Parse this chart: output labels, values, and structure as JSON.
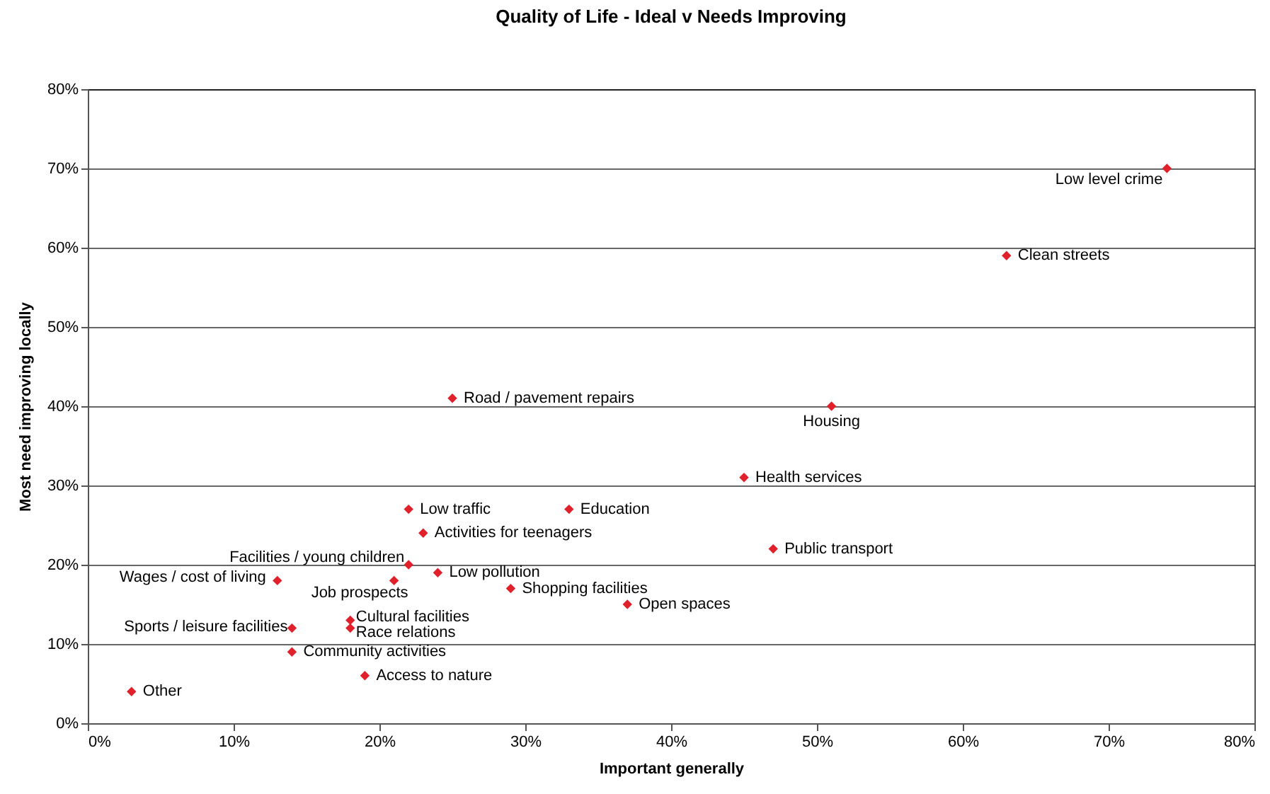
{
  "chart_data": {
    "type": "scatter",
    "title": "Quality of Life - Ideal v Needs Improving",
    "xlabel": "Important generally",
    "ylabel": "Most need improving locally",
    "xlim": [
      0,
      80
    ],
    "ylim": [
      0,
      80
    ],
    "xticks": [
      {
        "value": 0,
        "label": "0%"
      },
      {
        "value": 10,
        "label": "10%"
      },
      {
        "value": 20,
        "label": "20%"
      },
      {
        "value": 30,
        "label": "30%"
      },
      {
        "value": 40,
        "label": "40%"
      },
      {
        "value": 50,
        "label": "50%"
      },
      {
        "value": 60,
        "label": "60%"
      },
      {
        "value": 70,
        "label": "70%"
      },
      {
        "value": 80,
        "label": "80%"
      }
    ],
    "yticks": [
      {
        "value": 0,
        "label": "0%"
      },
      {
        "value": 10,
        "label": "10%"
      },
      {
        "value": 20,
        "label": "20%"
      },
      {
        "value": 30,
        "label": "30%"
      },
      {
        "value": 40,
        "label": "40%"
      },
      {
        "value": 50,
        "label": "50%"
      },
      {
        "value": 60,
        "label": "60%"
      },
      {
        "value": 70,
        "label": "70%"
      },
      {
        "value": 80,
        "label": "80%"
      }
    ],
    "grid": "y",
    "marker": "diamond",
    "series": [
      {
        "color": "#e0202a",
        "x": [
          74,
          63,
          51,
          25,
          45,
          22,
          33,
          23,
          47,
          22,
          13,
          21,
          24,
          29,
          37,
          14,
          18,
          18,
          14,
          19,
          3
        ],
        "values": [
          70,
          59,
          40,
          41,
          31,
          27,
          27,
          24,
          22,
          20,
          18,
          18,
          19,
          17,
          15,
          12,
          13,
          12,
          9,
          6,
          4
        ]
      }
    ],
    "annotations": [
      {
        "text": "Low level crime",
        "x": 74,
        "y": 70
      },
      {
        "text": "Clean streets",
        "x": 63,
        "y": 59
      },
      {
        "text": "Housing",
        "x": 51,
        "y": 40
      },
      {
        "text": "Road / pavement repairs",
        "x": 25,
        "y": 41
      },
      {
        "text": "Health services",
        "x": 45,
        "y": 31
      },
      {
        "text": "Low traffic",
        "x": 22,
        "y": 27
      },
      {
        "text": "Education",
        "x": 33,
        "y": 27
      },
      {
        "text": "Activities for teenagers",
        "x": 23,
        "y": 24
      },
      {
        "text": "Public transport",
        "x": 47,
        "y": 22
      },
      {
        "text": "Facilities / young children",
        "x": 22,
        "y": 20
      },
      {
        "text": "Wages / cost of living",
        "x": 13,
        "y": 18
      },
      {
        "text": "Job prospects",
        "x": 21,
        "y": 18
      },
      {
        "text": "Low pollution",
        "x": 24,
        "y": 19
      },
      {
        "text": "Shopping facilities",
        "x": 29,
        "y": 17
      },
      {
        "text": "Open spaces",
        "x": 37,
        "y": 15
      },
      {
        "text": "Sports / leisure facilities",
        "x": 14,
        "y": 12
      },
      {
        "text": "Cultural facilities",
        "x": 18,
        "y": 13
      },
      {
        "text": "Race relations",
        "x": 18,
        "y": 12
      },
      {
        "text": "Community activities",
        "x": 14,
        "y": 9
      },
      {
        "text": "Access to nature",
        "x": 19,
        "y": 6
      },
      {
        "text": "Other",
        "x": 3,
        "y": 4
      }
    ]
  }
}
